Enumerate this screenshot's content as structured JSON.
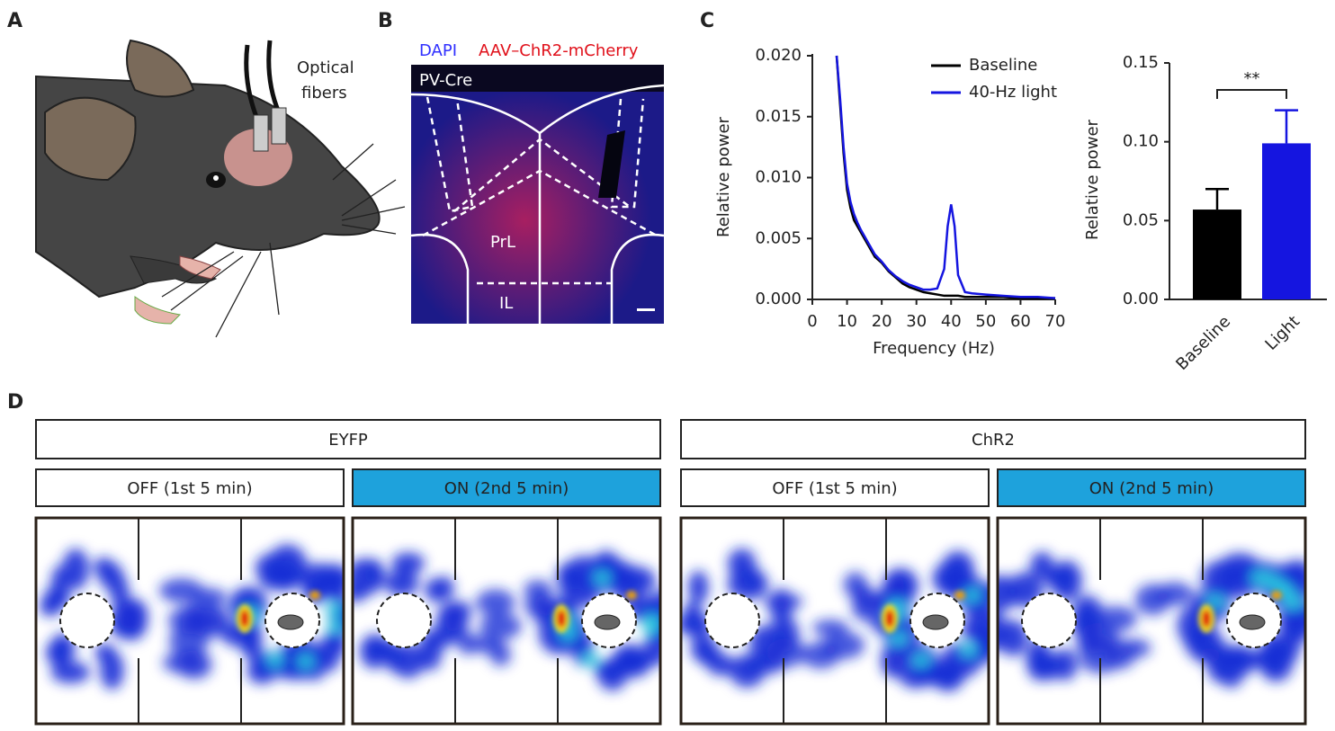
{
  "panels": [
    "A",
    "B",
    "C",
    "D"
  ],
  "panel_a": {
    "label_lines": [
      "Optical",
      "fibers"
    ]
  },
  "panel_b": {
    "stain_dapi": "DAPI",
    "stain_virus": "AAV–ChR2-mCherry",
    "line": "PV-Cre",
    "region_prl": "PrL",
    "region_il": "IL"
  },
  "chart_data": [
    {
      "type": "line",
      "xlabel": "Frequency (Hz)",
      "ylabel": "Relative power",
      "x": [
        7,
        8,
        9,
        10,
        11,
        12,
        13,
        14,
        15,
        16,
        18,
        20,
        22,
        24,
        26,
        28,
        30,
        32,
        34,
        36,
        38,
        39,
        40,
        41,
        42,
        44,
        46,
        50,
        55,
        60,
        65,
        70
      ],
      "series": [
        {
          "name": "Baseline",
          "color": "#000000",
          "values": [
            0.02,
            0.016,
            0.012,
            0.009,
            0.0075,
            0.0065,
            0.006,
            0.0055,
            0.005,
            0.0045,
            0.0035,
            0.003,
            0.0023,
            0.0018,
            0.0013,
            0.001,
            0.0008,
            0.0006,
            0.0005,
            0.0004,
            0.0003,
            0.0003,
            0.0003,
            0.0003,
            0.0003,
            0.0002,
            0.0002,
            0.0002,
            0.0002,
            0.0001,
            0.0001,
            0.0001
          ]
        },
        {
          "name": "40-Hz light",
          "color": "#1515e0",
          "values": [
            0.02,
            0.0165,
            0.0125,
            0.0095,
            0.008,
            0.007,
            0.0063,
            0.0057,
            0.0052,
            0.0047,
            0.0037,
            0.0031,
            0.0024,
            0.0019,
            0.0015,
            0.0012,
            0.001,
            0.0008,
            0.0008,
            0.0009,
            0.0025,
            0.006,
            0.0078,
            0.006,
            0.002,
            0.0006,
            0.0005,
            0.0004,
            0.0003,
            0.0002,
            0.0002,
            0.0001
          ]
        }
      ],
      "xlim": [
        0,
        70
      ],
      "xticks": [
        0,
        10,
        20,
        30,
        40,
        50,
        60,
        70
      ],
      "ylim": [
        0,
        0.02
      ],
      "yticks": [
        {
          "value": 0,
          "label": "0.000"
        },
        {
          "value": 0.005,
          "label": "0.005"
        },
        {
          "value": 0.01,
          "label": "0.010"
        },
        {
          "value": 0.015,
          "label": "0.015"
        },
        {
          "value": 0.02,
          "label": "0.020"
        }
      ],
      "legend": "upper right"
    },
    {
      "type": "bar",
      "ylabel": "Relative power",
      "categories": [
        "Baseline",
        "Light"
      ],
      "values": [
        0.057,
        0.099
      ],
      "errors": [
        0.013,
        0.021
      ],
      "colors": [
        "#000000",
        "#1515e0"
      ],
      "ylim": [
        0,
        0.15
      ],
      "yticks": [
        {
          "value": 0,
          "label": "0.00"
        },
        {
          "value": 0.05,
          "label": "0.05"
        },
        {
          "value": 0.1,
          "label": "0.10"
        },
        {
          "value": 0.15,
          "label": "0.15"
        }
      ],
      "annotation": "**"
    }
  ],
  "panel_d": {
    "groups": [
      "EYFP",
      "ChR2"
    ],
    "conditions": [
      "OFF (1st 5 min)",
      "ON (2nd 5 min)",
      "OFF (1st 5 min)",
      "ON (2nd 5 min)"
    ]
  }
}
